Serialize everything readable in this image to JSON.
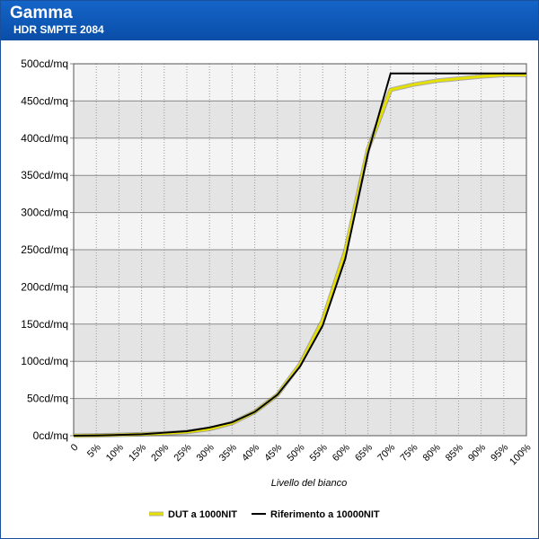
{
  "header": {
    "title": "Gamma",
    "subtitle": "HDR SMPTE 2084"
  },
  "colors": {
    "header_bg": "#0a56b8",
    "band_dark": "#e4e4e4",
    "band_light": "#f4f4f4",
    "dut_line": "#e6e000",
    "ref_line": "#000000"
  },
  "chart_data": {
    "type": "line",
    "title": "",
    "xlabel": "Livello del bianco",
    "ylabel": "",
    "x": [
      "0",
      "5%",
      "10%",
      "15%",
      "20%",
      "25%",
      "30%",
      "35%",
      "40%",
      "45%",
      "50%",
      "55%",
      "60%",
      "65%",
      "70%",
      "75%",
      "80%",
      "85%",
      "90%",
      "95%",
      "100%"
    ],
    "y_ticks": [
      "0cd/mq",
      "50cd/mq",
      "100cd/mq",
      "150cd/mq",
      "200cd/mq",
      "250cd/mq",
      "300cd/mq",
      "350cd/mq",
      "400cd/mq",
      "450cd/mq",
      "500cd/mq"
    ],
    "ylim": [
      0,
      500
    ],
    "grid": true,
    "legend_position": "bottom",
    "series": [
      {
        "name": "DUT a 1000NIT",
        "color": "#e6e000",
        "values": [
          0,
          0.3,
          1,
          2,
          3,
          5,
          9,
          17,
          32,
          55,
          96,
          155,
          248,
          385,
          465,
          472,
          477,
          480,
          483,
          485,
          485
        ]
      },
      {
        "name": "Riferimento a 10000NIT",
        "color": "#000000",
        "values": [
          0,
          0.3,
          1,
          2,
          4,
          6,
          11,
          18,
          32,
          55,
          93,
          148,
          238,
          380,
          487,
          487,
          487,
          487,
          487,
          487,
          487
        ]
      }
    ]
  }
}
